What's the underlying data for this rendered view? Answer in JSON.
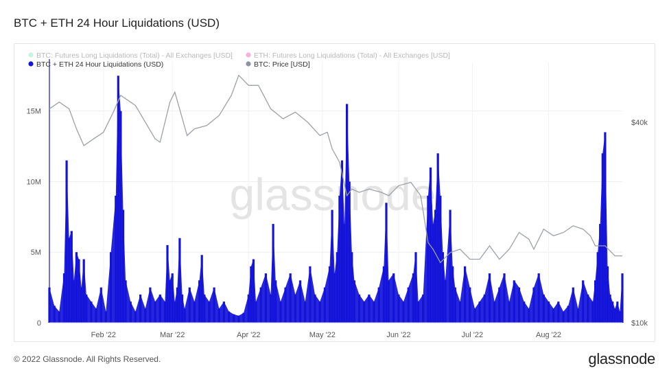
{
  "page": {
    "title": "BTC + ETH 24 Hour Liquidations (USD)",
    "copyright": "© 2022 Glassnode. All Rights Reserved.",
    "brand": "glassnode",
    "watermark": "glassnode"
  },
  "chart_data": {
    "type": "bar",
    "title": "BTC + ETH 24 Hour Liquidations (USD)",
    "legend": [
      {
        "label": "BTC: Futures Long Liquidations (Total) - All Exchanges [USD]",
        "color": "#5fe3a1",
        "faded": true
      },
      {
        "label": "ETH: Futures Long Liquidations (Total) - All Exchanges [USD]",
        "color": "#e0249a",
        "faded": true
      },
      {
        "label": "BTC + ETH 24 Hour Liquidations (USD)",
        "color": "#1414d9",
        "faded": false
      },
      {
        "label": "BTC: Price [USD]",
        "color": "#8c959d",
        "faded": false
      }
    ],
    "legend_position": "top-left",
    "grid": true,
    "x_range": [
      "2022-01-10",
      "2022-08-31"
    ],
    "x_ticks": [
      {
        "date": "2022-02-01",
        "label": "Feb '22"
      },
      {
        "date": "2022-03-01",
        "label": "Mar '22"
      },
      {
        "date": "2022-04-01",
        "label": "Apr '22"
      },
      {
        "date": "2022-05-01",
        "label": "May '22"
      },
      {
        "date": "2022-06-01",
        "label": "Jun '22"
      },
      {
        "date": "2022-07-01",
        "label": "Jul '22"
      },
      {
        "date": "2022-08-01",
        "label": "Aug '22"
      }
    ],
    "y_left": {
      "min": 0,
      "max": 18000000,
      "ticks": [
        0,
        5000000,
        10000000,
        15000000
      ],
      "tick_labels": [
        "0",
        "5M",
        "10M",
        "15M"
      ]
    },
    "y_right": {
      "min": 10000,
      "max": 48000,
      "ticks": [
        10000,
        40000
      ],
      "tick_labels": [
        "$10k",
        "$40k"
      ]
    },
    "liquidations_points": [
      [
        "2022-01-10",
        2500000
      ],
      [
        "2022-01-12",
        1200000
      ],
      [
        "2022-01-14",
        800000
      ],
      [
        "2022-01-16",
        3500000
      ],
      [
        "2022-01-17",
        11500000
      ],
      [
        "2022-01-18",
        6000000
      ],
      [
        "2022-01-19",
        6500000
      ],
      [
        "2022-01-20",
        3000000
      ],
      [
        "2022-01-21",
        5000000
      ],
      [
        "2022-01-22",
        4500000
      ],
      [
        "2022-01-23",
        2500000
      ],
      [
        "2022-01-24",
        4500000
      ],
      [
        "2022-01-25",
        2000000
      ],
      [
        "2022-01-27",
        1500000
      ],
      [
        "2022-01-29",
        1000000
      ],
      [
        "2022-01-31",
        2500000
      ],
      [
        "2022-02-02",
        800000
      ],
      [
        "2022-02-04",
        5000000
      ],
      [
        "2022-02-06",
        9000000
      ],
      [
        "2022-02-07",
        17500000
      ],
      [
        "2022-02-08",
        15000000
      ],
      [
        "2022-02-09",
        8000000
      ],
      [
        "2022-02-10",
        3000000
      ],
      [
        "2022-02-12",
        1500000
      ],
      [
        "2022-02-14",
        800000
      ],
      [
        "2022-02-16",
        2000000
      ],
      [
        "2022-02-18",
        1000000
      ],
      [
        "2022-02-20",
        2500000
      ],
      [
        "2022-02-22",
        1500000
      ],
      [
        "2022-02-24",
        2000000
      ],
      [
        "2022-02-26",
        1500000
      ],
      [
        "2022-02-27",
        5500000
      ],
      [
        "2022-02-28",
        3000000
      ],
      [
        "2022-03-01",
        3500000
      ],
      [
        "2022-03-02",
        1500000
      ],
      [
        "2022-03-03",
        2500000
      ],
      [
        "2022-03-04",
        6000000
      ],
      [
        "2022-03-05",
        2000000
      ],
      [
        "2022-03-06",
        1000000
      ],
      [
        "2022-03-08",
        2500000
      ],
      [
        "2022-03-10",
        1500000
      ],
      [
        "2022-03-12",
        3000000
      ],
      [
        "2022-03-13",
        4800000
      ],
      [
        "2022-03-14",
        2000000
      ],
      [
        "2022-03-16",
        1500000
      ],
      [
        "2022-03-18",
        2500000
      ],
      [
        "2022-03-20",
        1000000
      ],
      [
        "2022-03-22",
        1500000
      ],
      [
        "2022-03-24",
        800000
      ],
      [
        "2022-03-26",
        600000
      ],
      [
        "2022-03-28",
        500000
      ],
      [
        "2022-03-30",
        700000
      ],
      [
        "2022-04-01",
        2000000
      ],
      [
        "2022-04-02",
        4000000
      ],
      [
        "2022-04-03",
        4500000
      ],
      [
        "2022-04-04",
        1500000
      ],
      [
        "2022-04-06",
        2500000
      ],
      [
        "2022-04-08",
        3500000
      ],
      [
        "2022-04-10",
        2000000
      ],
      [
        "2022-04-11",
        7000000
      ],
      [
        "2022-04-12",
        3000000
      ],
      [
        "2022-04-14",
        1500000
      ],
      [
        "2022-04-16",
        2500000
      ],
      [
        "2022-04-18",
        3500000
      ],
      [
        "2022-04-20",
        2000000
      ],
      [
        "2022-04-22",
        3000000
      ],
      [
        "2022-04-24",
        1500000
      ],
      [
        "2022-04-26",
        4000000
      ],
      [
        "2022-04-28",
        2000000
      ],
      [
        "2022-04-30",
        1500000
      ],
      [
        "2022-05-02",
        2500000
      ],
      [
        "2022-05-04",
        4000000
      ],
      [
        "2022-05-05",
        8000000
      ],
      [
        "2022-05-06",
        3500000
      ],
      [
        "2022-05-07",
        5000000
      ],
      [
        "2022-05-08",
        9000000
      ],
      [
        "2022-05-09",
        11500000
      ],
      [
        "2022-05-10",
        7000000
      ],
      [
        "2022-05-11",
        15500000
      ],
      [
        "2022-05-12",
        10000000
      ],
      [
        "2022-05-13",
        5000000
      ],
      [
        "2022-05-14",
        3000000
      ],
      [
        "2022-05-16",
        2000000
      ],
      [
        "2022-05-18",
        1500000
      ],
      [
        "2022-05-20",
        2000000
      ],
      [
        "2022-05-22",
        1500000
      ],
      [
        "2022-05-24",
        2500000
      ],
      [
        "2022-05-26",
        4000000
      ],
      [
        "2022-05-27",
        8500000
      ],
      [
        "2022-05-28",
        3000000
      ],
      [
        "2022-05-30",
        3500000
      ],
      [
        "2022-06-01",
        2000000
      ],
      [
        "2022-06-03",
        1500000
      ],
      [
        "2022-06-05",
        2500000
      ],
      [
        "2022-06-07",
        3500000
      ],
      [
        "2022-06-08",
        5000000
      ],
      [
        "2022-06-09",
        1500000
      ],
      [
        "2022-06-11",
        2000000
      ],
      [
        "2022-06-13",
        9000000
      ],
      [
        "2022-06-14",
        11000000
      ],
      [
        "2022-06-15",
        7000000
      ],
      [
        "2022-06-16",
        8000000
      ],
      [
        "2022-06-17",
        12000000
      ],
      [
        "2022-06-18",
        9000000
      ],
      [
        "2022-06-19",
        5000000
      ],
      [
        "2022-06-20",
        3000000
      ],
      [
        "2022-06-22",
        8000000
      ],
      [
        "2022-06-23",
        4000000
      ],
      [
        "2022-06-24",
        2500000
      ],
      [
        "2022-06-26",
        1500000
      ],
      [
        "2022-06-28",
        4000000
      ],
      [
        "2022-06-30",
        2500000
      ],
      [
        "2022-07-02",
        1000000
      ],
      [
        "2022-07-04",
        1500000
      ],
      [
        "2022-07-06",
        2000000
      ],
      [
        "2022-07-08",
        3500000
      ],
      [
        "2022-07-10",
        1500000
      ],
      [
        "2022-07-12",
        2500000
      ],
      [
        "2022-07-14",
        3500000
      ],
      [
        "2022-07-16",
        1500000
      ],
      [
        "2022-07-18",
        3000000
      ],
      [
        "2022-07-20",
        2500000
      ],
      [
        "2022-07-22",
        1500000
      ],
      [
        "2022-07-24",
        1000000
      ],
      [
        "2022-07-26",
        2500000
      ],
      [
        "2022-07-28",
        3500000
      ],
      [
        "2022-07-30",
        2000000
      ],
      [
        "2022-08-01",
        1500000
      ],
      [
        "2022-08-03",
        1000000
      ],
      [
        "2022-08-05",
        1500000
      ],
      [
        "2022-08-07",
        800000
      ],
      [
        "2022-08-09",
        1200000
      ],
      [
        "2022-08-11",
        2500000
      ],
      [
        "2022-08-13",
        1000000
      ],
      [
        "2022-08-15",
        3000000
      ],
      [
        "2022-08-17",
        2000000
      ],
      [
        "2022-08-19",
        1500000
      ],
      [
        "2022-08-20",
        3000000
      ],
      [
        "2022-08-21",
        5000000
      ],
      [
        "2022-08-22",
        7000000
      ],
      [
        "2022-08-23",
        12000000
      ],
      [
        "2022-08-24",
        13500000
      ],
      [
        "2022-08-25",
        4000000
      ],
      [
        "2022-08-26",
        2000000
      ],
      [
        "2022-08-27",
        1500000
      ],
      [
        "2022-08-28",
        1000000
      ],
      [
        "2022-08-29",
        1500000
      ],
      [
        "2022-08-30",
        800000
      ],
      [
        "2022-08-31",
        3500000
      ]
    ],
    "btc_price": [
      [
        "2022-01-10",
        42000
      ],
      [
        "2022-01-14",
        43000
      ],
      [
        "2022-01-18",
        42000
      ],
      [
        "2022-01-21",
        39000
      ],
      [
        "2022-01-24",
        36500
      ],
      [
        "2022-01-28",
        37500
      ],
      [
        "2022-02-01",
        38500
      ],
      [
        "2022-02-05",
        41500
      ],
      [
        "2022-02-08",
        44000
      ],
      [
        "2022-02-10",
        43500
      ],
      [
        "2022-02-14",
        42500
      ],
      [
        "2022-02-18",
        40000
      ],
      [
        "2022-02-22",
        37500
      ],
      [
        "2022-02-24",
        37000
      ],
      [
        "2022-02-28",
        43000
      ],
      [
        "2022-03-02",
        44500
      ],
      [
        "2022-03-07",
        38000
      ],
      [
        "2022-03-10",
        39000
      ],
      [
        "2022-03-15",
        39500
      ],
      [
        "2022-03-20",
        41000
      ],
      [
        "2022-03-25",
        44000
      ],
      [
        "2022-03-28",
        47000
      ],
      [
        "2022-04-01",
        45500
      ],
      [
        "2022-04-05",
        45500
      ],
      [
        "2022-04-10",
        42000
      ],
      [
        "2022-04-15",
        40500
      ],
      [
        "2022-04-20",
        41500
      ],
      [
        "2022-04-25",
        40000
      ],
      [
        "2022-04-30",
        38000
      ],
      [
        "2022-05-03",
        38500
      ],
      [
        "2022-05-05",
        36000
      ],
      [
        "2022-05-08",
        34000
      ],
      [
        "2022-05-11",
        29000
      ],
      [
        "2022-05-13",
        30000
      ],
      [
        "2022-05-16",
        29500
      ],
      [
        "2022-05-20",
        30000
      ],
      [
        "2022-05-25",
        29500
      ],
      [
        "2022-05-28",
        29000
      ],
      [
        "2022-06-01",
        30500
      ],
      [
        "2022-06-06",
        31000
      ],
      [
        "2022-06-10",
        29000
      ],
      [
        "2022-06-13",
        22000
      ],
      [
        "2022-06-15",
        21000
      ],
      [
        "2022-06-18",
        19000
      ],
      [
        "2022-06-22",
        20500
      ],
      [
        "2022-06-26",
        21000
      ],
      [
        "2022-06-30",
        19500
      ],
      [
        "2022-07-04",
        19500
      ],
      [
        "2022-07-08",
        21500
      ],
      [
        "2022-07-12",
        19500
      ],
      [
        "2022-07-16",
        21000
      ],
      [
        "2022-07-20",
        23500
      ],
      [
        "2022-07-24",
        22500
      ],
      [
        "2022-07-26",
        21000
      ],
      [
        "2022-07-30",
        24000
      ],
      [
        "2022-08-03",
        23000
      ],
      [
        "2022-08-07",
        23500
      ],
      [
        "2022-08-11",
        24500
      ],
      [
        "2022-08-15",
        24000
      ],
      [
        "2022-08-18",
        23000
      ],
      [
        "2022-08-20",
        21500
      ],
      [
        "2022-08-24",
        21500
      ],
      [
        "2022-08-28",
        20000
      ],
      [
        "2022-08-31",
        20000
      ]
    ]
  }
}
